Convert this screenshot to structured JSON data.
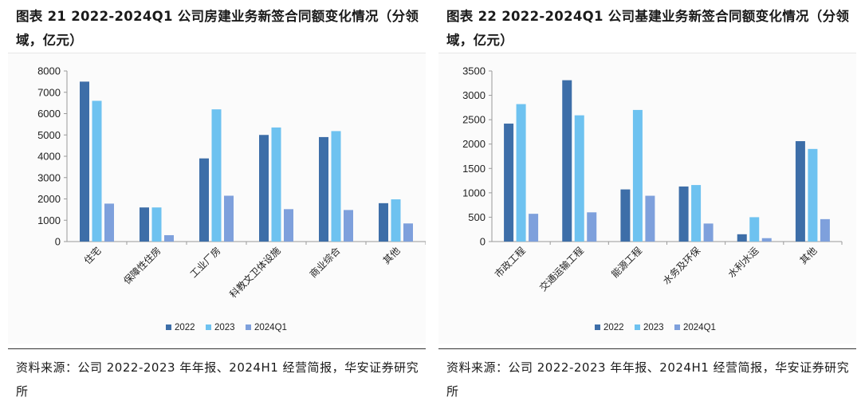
{
  "panels": [
    {
      "title": "图表 21 2022-2024Q1 公司房建业务新签合同额变化情况（分领域，亿元）",
      "source": "资料来源：公司 2022-2023 年年报、2024H1 经营简报，华安证券研究所"
    },
    {
      "title": "图表 22 2022-2024Q1 公司基建业务新签合同额变化情况（分领域，亿元）",
      "source": "资料来源：公司 2022-2023 年年报、2024H1 经营简报，华安证券研究所"
    }
  ],
  "colors": {
    "2022": "#3d6ea8",
    "2023": "#6ec2f0",
    "2024Q1": "#7ea0dc"
  },
  "chart_data": [
    {
      "type": "bar",
      "categories": [
        "住宅",
        "保障性住房",
        "工业厂房",
        "科教文卫体设施",
        "商业综合",
        "其他"
      ],
      "series": [
        {
          "name": "2022",
          "values": [
            7500,
            1600,
            3900,
            5000,
            4900,
            1800
          ]
        },
        {
          "name": "2023",
          "values": [
            6600,
            1600,
            6200,
            5350,
            5180,
            1980
          ]
        },
        {
          "name": "2024Q1",
          "values": [
            1780,
            300,
            2150,
            1520,
            1480,
            850
          ]
        }
      ],
      "yticks": [
        "0",
        "1000",
        "2000",
        "3000",
        "4000",
        "5000",
        "6000",
        "7000",
        "8000"
      ],
      "ylim": [
        0,
        8000
      ],
      "legend": "bottom"
    },
    {
      "type": "bar",
      "categories": [
        "市政工程",
        "交通运输工程",
        "能源工程",
        "水务及环保",
        "水利水运",
        "其他"
      ],
      "series": [
        {
          "name": "2022",
          "values": [
            2420,
            3310,
            1070,
            1130,
            150,
            2060
          ]
        },
        {
          "name": "2023",
          "values": [
            2820,
            2590,
            2700,
            1160,
            500,
            1900
          ]
        },
        {
          "name": "2024Q1",
          "values": [
            570,
            600,
            940,
            370,
            70,
            460
          ]
        }
      ],
      "yticks": [
        "0",
        "500",
        "1000",
        "1500",
        "2000",
        "2500",
        "3000",
        "3500"
      ],
      "ylim": [
        0,
        3500
      ],
      "legend": "bottom"
    }
  ]
}
